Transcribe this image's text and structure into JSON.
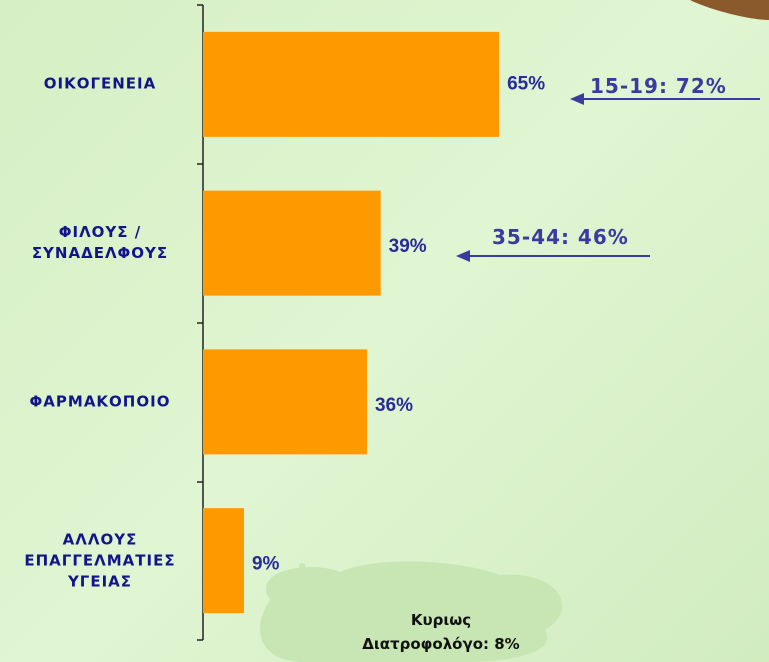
{
  "chart_data": {
    "type": "barh",
    "categories": [
      "ΟΙΚΟΓΕΝΕΙΑ",
      "ΦΙΛΟΥΣ /\nΣΥΝΑΔΕΛΦΟΥΣ",
      "ΦΑΡΜΑΚΟΠΟΙΟ",
      "ΑΛΛΟΥΣ\nΕΠΑΓΓΕΛΜΑΤΙΕΣ\nΥΓΕΙΑΣ"
    ],
    "values": [
      65,
      39,
      36,
      9
    ],
    "value_labels": [
      "65%",
      "39%",
      "36%",
      "9%"
    ],
    "color": "#ff9900",
    "annotations": [
      "15-19: 72%",
      "35-44: 46%",
      "Κυριως\nΔιατροφολόγο: 8%"
    ]
  }
}
